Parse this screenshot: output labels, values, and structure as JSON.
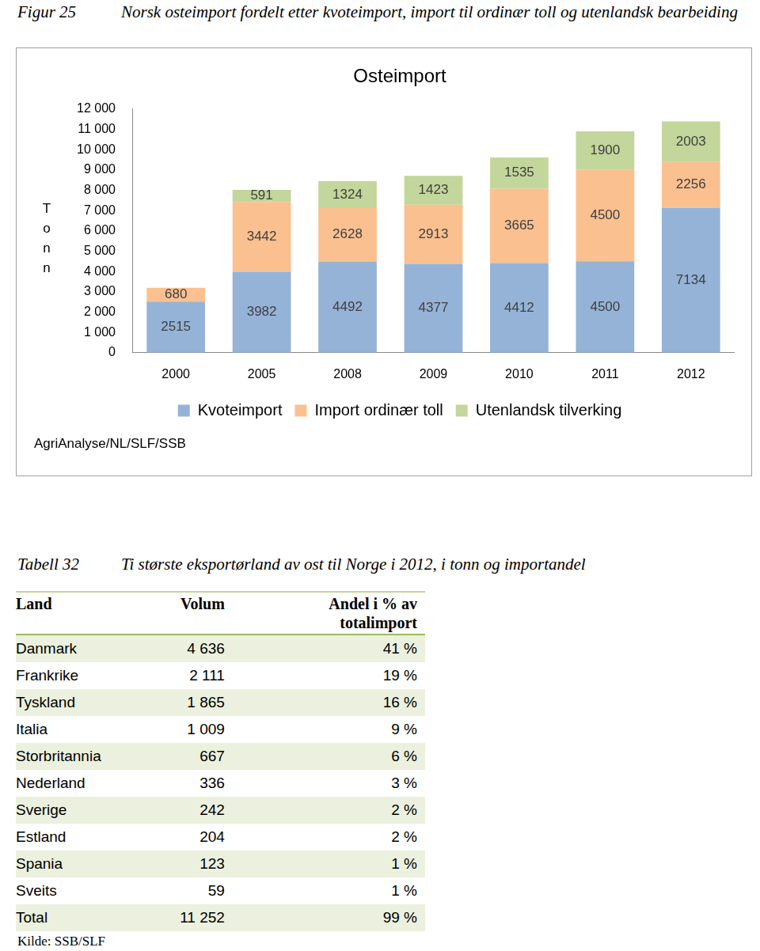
{
  "figure": {
    "label": "Figur 25",
    "caption": "Norsk osteimport fordelt etter kvoteimport, import til ordinær toll og utenlandsk bearbeiding"
  },
  "chart_data": {
    "type": "bar",
    "title": "Osteimport",
    "y_label": "Tonn",
    "source": "AgriAnalyse/NL/SLF/SSB",
    "categories": [
      "2000",
      "2005",
      "2008",
      "2009",
      "2010",
      "2011",
      "2012"
    ],
    "series": [
      {
        "name": "Kvoteimport",
        "color": "#95b3d7",
        "values": [
          2515,
          3982,
          4492,
          4377,
          4412,
          4500,
          7134
        ]
      },
      {
        "name": "Import ordinær toll",
        "color": "#fac090",
        "values": [
          680,
          3442,
          2628,
          2913,
          3665,
          4500,
          2256
        ]
      },
      {
        "name": "Utenlandsk tilverking",
        "color": "#c3d69b",
        "values": [
          null,
          591,
          1324,
          1423,
          1535,
          1900,
          2003
        ]
      }
    ],
    "stacked": true,
    "data_labels": true,
    "legend": "bottom",
    "grid": false,
    "ylim": [
      0,
      12000
    ],
    "yticks": [
      0,
      {
        "value": 1000,
        "label": "1 000"
      },
      {
        "value": 2000,
        "label": "2 000"
      },
      {
        "value": 3000,
        "label": "3 000"
      },
      {
        "value": 4000,
        "label": "4 000"
      },
      {
        "value": 5000,
        "label": "5 000"
      },
      {
        "value": 6000,
        "label": "6 000"
      },
      {
        "value": 7000,
        "label": "7 000"
      },
      {
        "value": 8000,
        "label": "8 000"
      },
      {
        "value": 9000,
        "label": "9 000"
      },
      {
        "value": 10000,
        "label": "10 000"
      },
      {
        "value": 11000,
        "label": "11 000"
      },
      {
        "value": 12000,
        "label": "12 000"
      }
    ]
  },
  "table": {
    "label": "Tabell 32",
    "caption": "Ti største eksportørland av ost til Norge i 2012, i tonn og importandel",
    "header": [
      "Land",
      "Volum",
      "Andel i % av totalimport"
    ],
    "rows": [
      [
        "Danmark",
        "4 636",
        "41 %"
      ],
      [
        "Frankrike",
        "2 111",
        "19 %"
      ],
      [
        "Tyskland",
        "1 865",
        "16 %"
      ],
      [
        "Italia",
        "1 009",
        "9 %"
      ],
      [
        "Storbritannia",
        "667",
        "6 %"
      ],
      [
        "Nederland",
        "336",
        "3 %"
      ],
      [
        "Sverige",
        "242",
        "2 %"
      ],
      [
        "Estland",
        "204",
        "2 %"
      ],
      [
        "Spania",
        "123",
        "1 %"
      ],
      [
        "Sveits",
        "59",
        "1 %"
      ],
      [
        "Total",
        "11 252",
        "99 %"
      ]
    ],
    "source": "Kilde: SSB/SLF"
  }
}
